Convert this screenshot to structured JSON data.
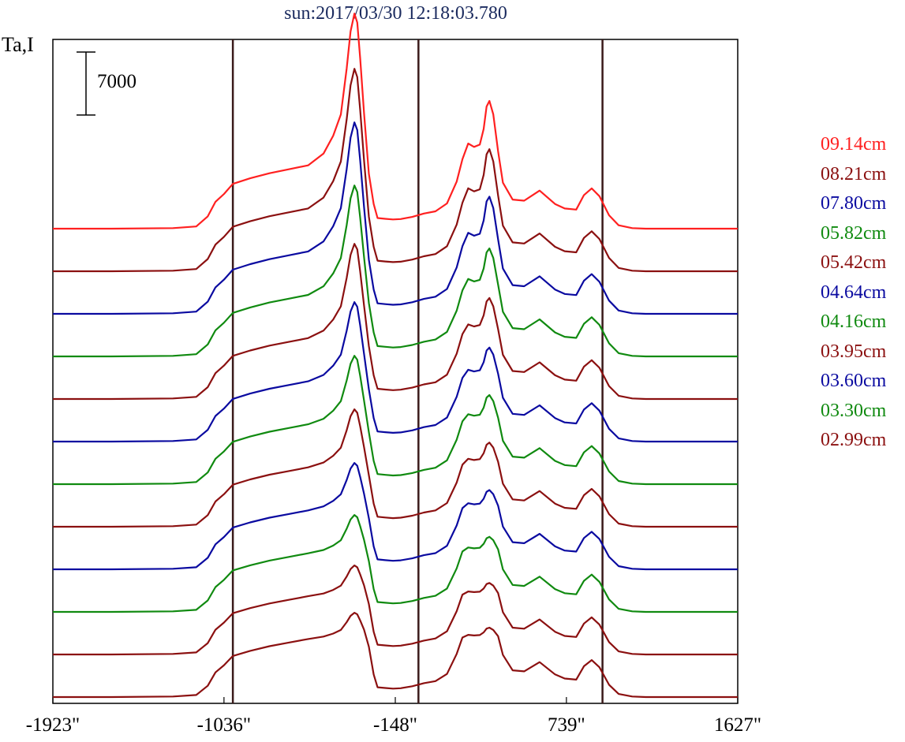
{
  "chart_data": {
    "type": "line",
    "title": "sun:2017/03/30 12:18:03.780",
    "ylabel": "Ta,I",
    "xlabel": "",
    "scale_bar": {
      "label": "7000",
      "value": 7000
    },
    "x_ticks": [
      {
        "value": -1923,
        "label": "-1923\""
      },
      {
        "value": -1036,
        "label": "-1036\""
      },
      {
        "value": -148,
        "label": "-148\""
      },
      {
        "value": 739,
        "label": "739\""
      },
      {
        "value": 1627,
        "label": "1627\""
      }
    ],
    "xlim": [
      -1923,
      1627
    ],
    "vertical_markers": [
      -990,
      -28,
      926
    ],
    "x": [
      -1923,
      -1620,
      -1300,
      -1180,
      -1120,
      -1080,
      -1036,
      -990,
      -900,
      -800,
      -700,
      -600,
      -520,
      -470,
      -430,
      -400,
      -380,
      -360,
      -345,
      -330,
      -310,
      -285,
      -260,
      -240,
      -200,
      -160,
      -120,
      -60,
      0,
      60,
      120,
      170,
      200,
      230,
      260,
      290,
      310,
      325,
      340,
      360,
      385,
      410,
      460,
      520,
      600,
      680,
      730,
      790,
      830,
      870,
      910,
      960,
      1010,
      1080,
      1150,
      1300,
      1627
    ],
    "series": [
      {
        "name": "09.14cm",
        "color": "#ff2020",
        "offset_units": 10,
        "values": [
          0.0,
          0.0,
          0.05,
          0.2,
          1.1,
          2.4,
          3.1,
          4.0,
          4.5,
          4.95,
          5.3,
          5.65,
          6.7,
          8.3,
          10.2,
          14.3,
          17.6,
          19.2,
          18.4,
          15.2,
          10.3,
          4.9,
          2.2,
          0.95,
          0.88,
          0.82,
          0.86,
          1.05,
          1.35,
          1.55,
          2.25,
          4.2,
          6.2,
          7.6,
          7.3,
          7.5,
          8.9,
          10.9,
          11.4,
          10.2,
          6.9,
          4.1,
          2.6,
          2.5,
          3.4,
          2.2,
          1.8,
          1.7,
          3.0,
          3.6,
          2.9,
          1.2,
          0.3,
          0.05,
          0.0,
          0.0,
          0.0
        ]
      },
      {
        "name": "08.21cm",
        "color": "#8b1010",
        "offset_units": 9,
        "values": "profile"
      },
      {
        "name": "07.80cm",
        "color": "#0a0aa0",
        "offset_units": 8,
        "values": "profile"
      },
      {
        "name": "05.82cm",
        "color": "#108a10",
        "offset_units": 7,
        "values": "profile"
      },
      {
        "name": "05.42cm",
        "color": "#8b1010",
        "offset_units": 6,
        "values": "profile"
      },
      {
        "name": "04.64cm",
        "color": "#0a0aa0",
        "offset_units": 5,
        "values": "profile"
      },
      {
        "name": "04.16cm",
        "color": "#108a10",
        "offset_units": 4,
        "values": "profile"
      },
      {
        "name": "03.95cm",
        "color": "#8b1010",
        "offset_units": 3,
        "values": "profile"
      },
      {
        "name": "03.60cm",
        "color": "#0a0aa0",
        "offset_units": 2,
        "values": "profile"
      },
      {
        "name": "03.30cm",
        "color": "#108a10",
        "offset_units": 1,
        "values": "profile"
      },
      {
        "name": "02.99cm",
        "color": "#8b1010",
        "offset_units": 0,
        "values": "profile"
      }
    ],
    "unlabeled_series": [
      {
        "color": "#8b1010",
        "offset_units": 0
      }
    ],
    "grid": false,
    "legend_placement": "right",
    "frame_color": "#000000",
    "marker_color": "#3a1a1a"
  }
}
